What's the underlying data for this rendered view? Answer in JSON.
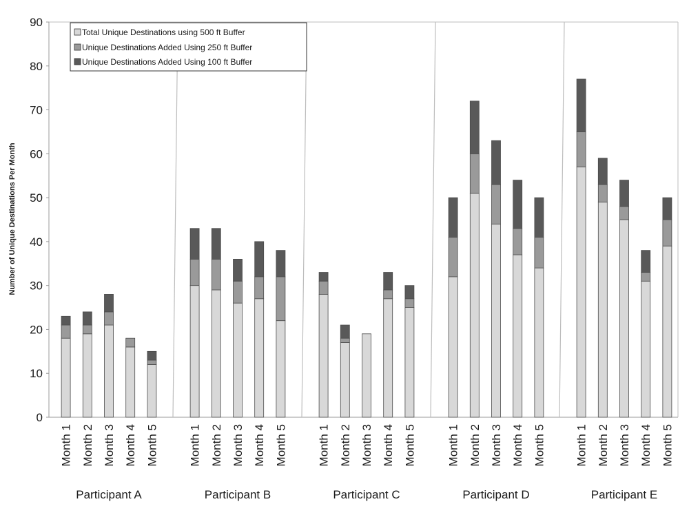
{
  "colors": {
    "s500": "#d8d8d8",
    "s250": "#9a9a9a",
    "s100": "#595959",
    "bar_stroke": "#4a4a4a",
    "axis": "#999999",
    "divider": "#bdbdbd"
  },
  "chart_data": {
    "type": "bar",
    "stacked": true,
    "title": "",
    "xlabel": "",
    "ylabel": "Number of Unique Destinations Per Month",
    "ylim": [
      0,
      90
    ],
    "yticks": [
      0,
      10,
      20,
      30,
      40,
      50,
      60,
      70,
      80,
      90
    ],
    "grid": false,
    "legend_position": "top-left",
    "groups": [
      "Participant A",
      "Participant B",
      "Participant C",
      "Participant D",
      "Participant E"
    ],
    "categories": [
      "Month 1",
      "Month 2",
      "Month 3",
      "Month 4",
      "Month 5"
    ],
    "series": [
      {
        "name": "Total Unique Destinations using 500 ft Buffer",
        "color_key": "s500",
        "values": [
          [
            18,
            19,
            21,
            16,
            12
          ],
          [
            30,
            29,
            26,
            27,
            22
          ],
          [
            28,
            17,
            19,
            27,
            25
          ],
          [
            32,
            51,
            44,
            37,
            34
          ],
          [
            57,
            49,
            45,
            31,
            39
          ]
        ]
      },
      {
        "name": "Unique Destinations Added Using 250 ft Buffer",
        "color_key": "s250",
        "values": [
          [
            3,
            2,
            3,
            2,
            1
          ],
          [
            6,
            7,
            5,
            5,
            10
          ],
          [
            3,
            1,
            0,
            2,
            2
          ],
          [
            9,
            9,
            9,
            6,
            7
          ],
          [
            8,
            4,
            3,
            2,
            6
          ]
        ]
      },
      {
        "name": "Unique Destinations Added Using 100 ft Buffer",
        "color_key": "s100",
        "values": [
          [
            2,
            3,
            4,
            0,
            2
          ],
          [
            7,
            7,
            5,
            8,
            6
          ],
          [
            2,
            3,
            0,
            4,
            3
          ],
          [
            9,
            12,
            10,
            11,
            9
          ],
          [
            12,
            6,
            6,
            5,
            5
          ]
        ]
      }
    ]
  }
}
